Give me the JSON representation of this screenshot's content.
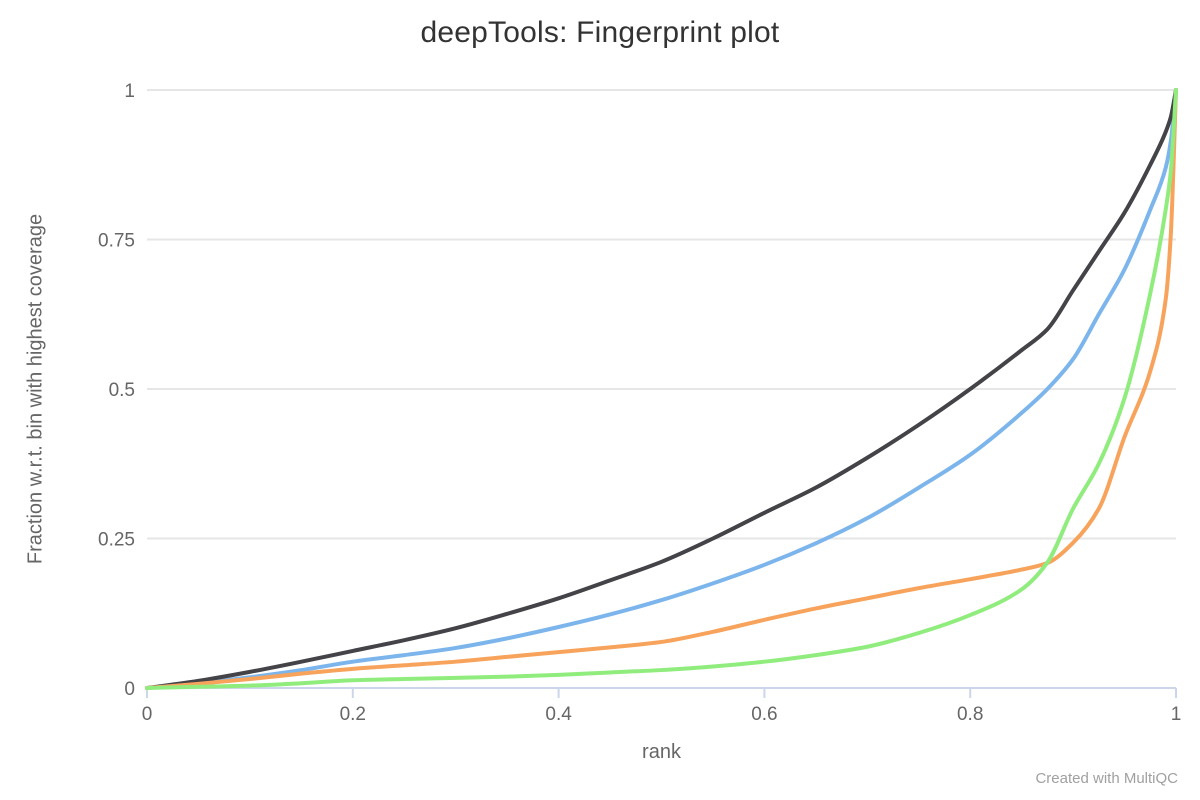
{
  "page": {
    "title": "deepTools: Fingerprint plot",
    "watermark": "Created with MultiQC"
  },
  "chart_data": {
    "type": "line",
    "title": "deepTools: Fingerprint plot",
    "xlabel": "rank",
    "ylabel": "Fraction w.r.t. bin with highest coverage",
    "xlim": [
      0,
      1
    ],
    "ylim": [
      0,
      1
    ],
    "grid": "horizontal-only",
    "legend": "none",
    "annotation": "Created with MultiQC",
    "xticks": {
      "values": [
        0,
        0.2,
        0.4,
        0.6,
        0.8,
        1
      ],
      "labels": [
        "0",
        "0.2",
        "0.4",
        "0.6",
        "0.8",
        "1"
      ]
    },
    "yticks": {
      "values": [
        0,
        0.25,
        0.5,
        0.75,
        1
      ],
      "labels": [
        "0",
        "0.25",
        "0.5",
        "0.75",
        "1"
      ]
    },
    "styles": {
      "grid_color": "#e6e6e6",
      "axis_color": "#ccd6eb",
      "label_color": "#666666",
      "title_color": "#333333",
      "line_width": 4
    },
    "x": [
      0,
      0.05,
      0.1,
      0.15,
      0.2,
      0.25,
      0.3,
      0.35,
      0.4,
      0.45,
      0.5,
      0.55,
      0.6,
      0.65,
      0.7,
      0.75,
      0.8,
      0.85,
      0.875,
      0.9,
      0.925,
      0.95,
      0.975,
      0.99,
      0.995,
      1.0
    ],
    "series": [
      {
        "name": "series-blue",
        "color": "#7cb5ec",
        "values": [
          0,
          0.008,
          0.018,
          0.03,
          0.044,
          0.055,
          0.067,
          0.083,
          0.102,
          0.123,
          0.147,
          0.175,
          0.206,
          0.242,
          0.284,
          0.335,
          0.39,
          0.46,
          0.5,
          0.55,
          0.625,
          0.7,
          0.8,
          0.87,
          0.915,
          1.0
        ]
      },
      {
        "name": "series-black",
        "color": "#434348",
        "values": [
          0,
          0.012,
          0.027,
          0.044,
          0.062,
          0.08,
          0.1,
          0.124,
          0.15,
          0.18,
          0.211,
          0.25,
          0.293,
          0.335,
          0.385,
          0.44,
          0.5,
          0.565,
          0.6,
          0.665,
          0.73,
          0.795,
          0.875,
          0.93,
          0.955,
          1.0
        ]
      },
      {
        "name": "series-orange",
        "color": "#f7a35c",
        "values": [
          0,
          0.007,
          0.015,
          0.024,
          0.032,
          0.038,
          0.044,
          0.052,
          0.06,
          0.068,
          0.077,
          0.094,
          0.114,
          0.133,
          0.15,
          0.167,
          0.182,
          0.198,
          0.209,
          0.243,
          0.3,
          0.42,
          0.53,
          0.65,
          0.76,
          1.0
        ]
      },
      {
        "name": "series-green",
        "color": "#90ed7d",
        "values": [
          0,
          0.002,
          0.004,
          0.008,
          0.013,
          0.015,
          0.017,
          0.019,
          0.022,
          0.026,
          0.03,
          0.036,
          0.044,
          0.055,
          0.069,
          0.092,
          0.122,
          0.165,
          0.21,
          0.3,
          0.375,
          0.485,
          0.66,
          0.8,
          0.865,
          1.0
        ]
      }
    ]
  }
}
